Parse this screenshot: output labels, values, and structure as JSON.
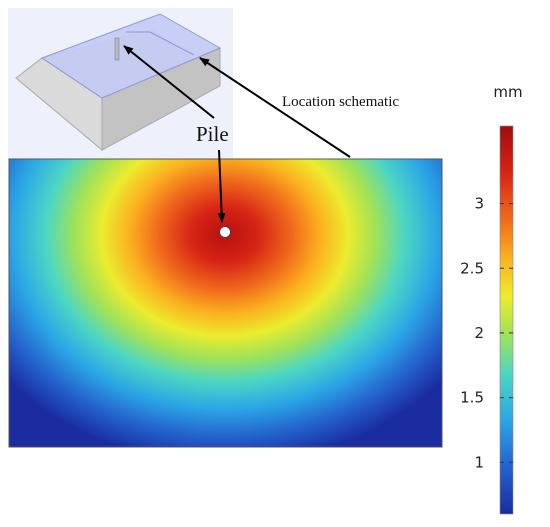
{
  "annotations": {
    "location_label": "Location schematic",
    "pile_label": "Pile"
  },
  "colorbar": {
    "unit": "mm",
    "ticks": [
      "1",
      "1.5",
      "2",
      "2.5",
      "3"
    ],
    "tick_values": [
      1,
      1.5,
      2,
      2.5,
      3
    ],
    "range": [
      0.6,
      3.6
    ],
    "colormap": "jet"
  },
  "colors": {
    "map_min": "#1a2ca0",
    "map_max": "#b8100f",
    "schematic_top": "#c6cbf5",
    "schematic_side": "#d4d4d4",
    "pile_marker": "#ffffff"
  }
}
